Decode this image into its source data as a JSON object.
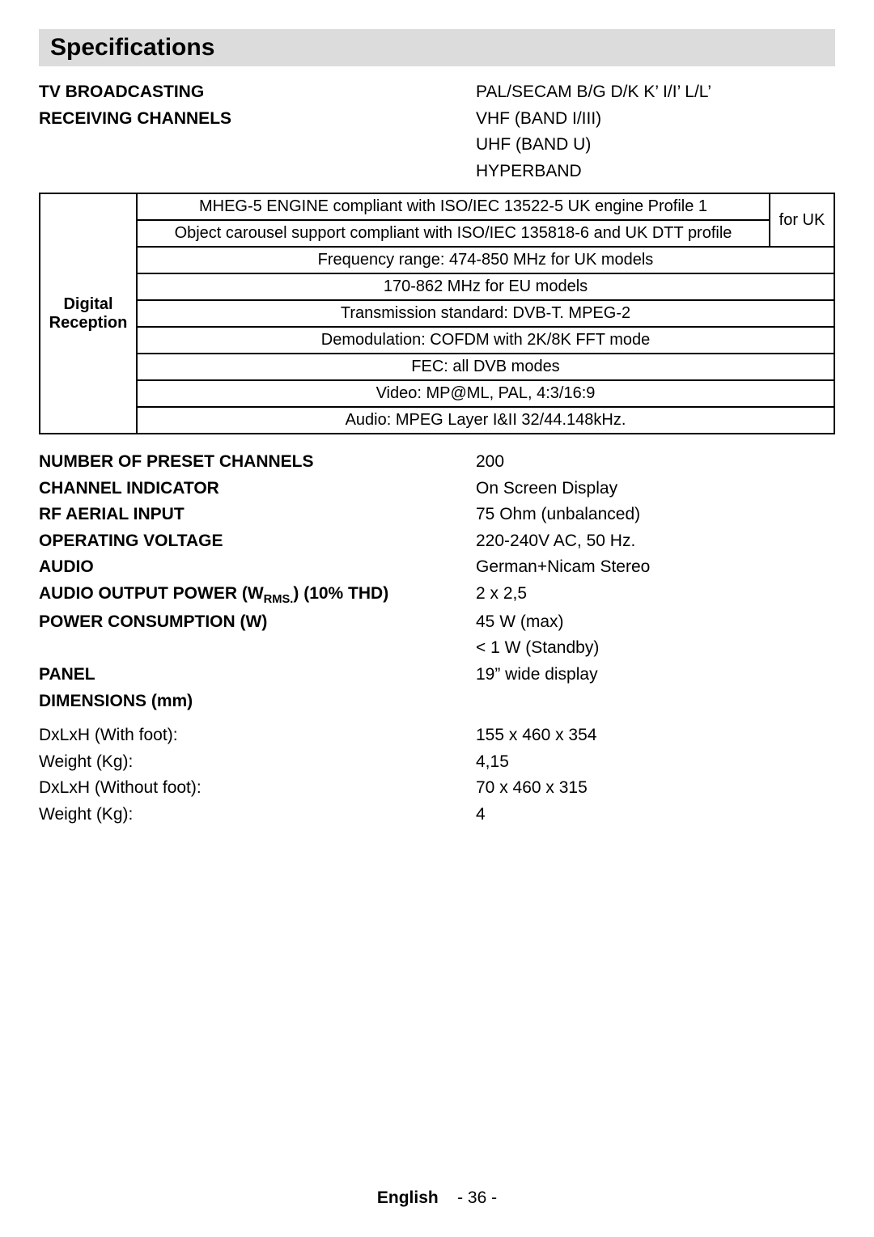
{
  "colors": {
    "page_bg": "#ffffff",
    "title_bg": "#dcdcdc",
    "text": "#000000",
    "table_border": "#000000"
  },
  "typography": {
    "title_fontsize_pt": 22,
    "body_fontsize_pt": 16,
    "table_fontsize_pt": 15,
    "footer_fontsize_pt": 16
  },
  "title": "Specifications",
  "top_specs": [
    {
      "key": "TV BROADCASTING",
      "values": [
        "PAL/SECAM B/G D/K K’ I/I’ L/L’"
      ]
    },
    {
      "key": "RECEIVING CHANNELS",
      "values": [
        "VHF (BAND I/III)",
        "UHF (BAND U)",
        "HYPERBAND"
      ]
    }
  ],
  "digital_reception": {
    "row_header": "Digital Reception",
    "uk_block": {
      "lines": [
        "MHEG-5 ENGINE compliant with ISO/IEC 13522-5 UK engine Profile 1",
        "Object carousel support compliant with ISO/IEC 135818-6 and UK DTT profile"
      ],
      "side_label": "for UK"
    },
    "rows": [
      "Frequency range: 474-850 MHz  for UK  models",
      "170-862 MHz for EU models",
      "Transmission standard: DVB-T. MPEG-2",
      "Demodulation: COFDM with 2K/8K FFT mode",
      "FEC: all DVB modes",
      "Video: MP@ML, PAL, 4:3/16:9",
      "Audio: MPEG Layer I&II 32/44.148kHz."
    ]
  },
  "bottom_specs": [
    {
      "key": "NUMBER OF PRESET CHANNELS",
      "values": [
        "200"
      ]
    },
    {
      "key": "CHANNEL INDICATOR",
      "values": [
        "On Screen Display"
      ]
    },
    {
      "key": "RF AERIAL INPUT",
      "values": [
        "75 Ohm (unbalanced)"
      ]
    },
    {
      "key": "OPERATING VOLTAGE",
      "values": [
        "220-240V AC, 50 Hz."
      ]
    },
    {
      "key": "AUDIO",
      "values": [
        "German+Nicam Stereo"
      ]
    },
    {
      "key_html": "AUDIO OUTPUT POWER (W<sub>RMS.</sub>) (10% THD)",
      "values": [
        "2 x 2,5"
      ]
    },
    {
      "key": "POWER CONSUMPTION (W)",
      "values": [
        "45 W (max)",
        "< 1 W (Standby)"
      ]
    },
    {
      "key": "PANEL",
      "values": [
        "19” wide display"
      ]
    },
    {
      "key": "DIMENSIONS (mm)",
      "values": [
        ""
      ]
    }
  ],
  "dimension_rows": [
    {
      "key": "DxLxH (With foot):",
      "value": "155 x 460 x 354"
    },
    {
      "key": "Weight (Kg):",
      "value": "4,15"
    },
    {
      "key": "DxLxH (Without foot):",
      "value": "70 x 460 x 315"
    },
    {
      "key": "Weight (Kg):",
      "value": "4"
    }
  ],
  "footer": {
    "language": "English",
    "page": "- 36 -"
  }
}
